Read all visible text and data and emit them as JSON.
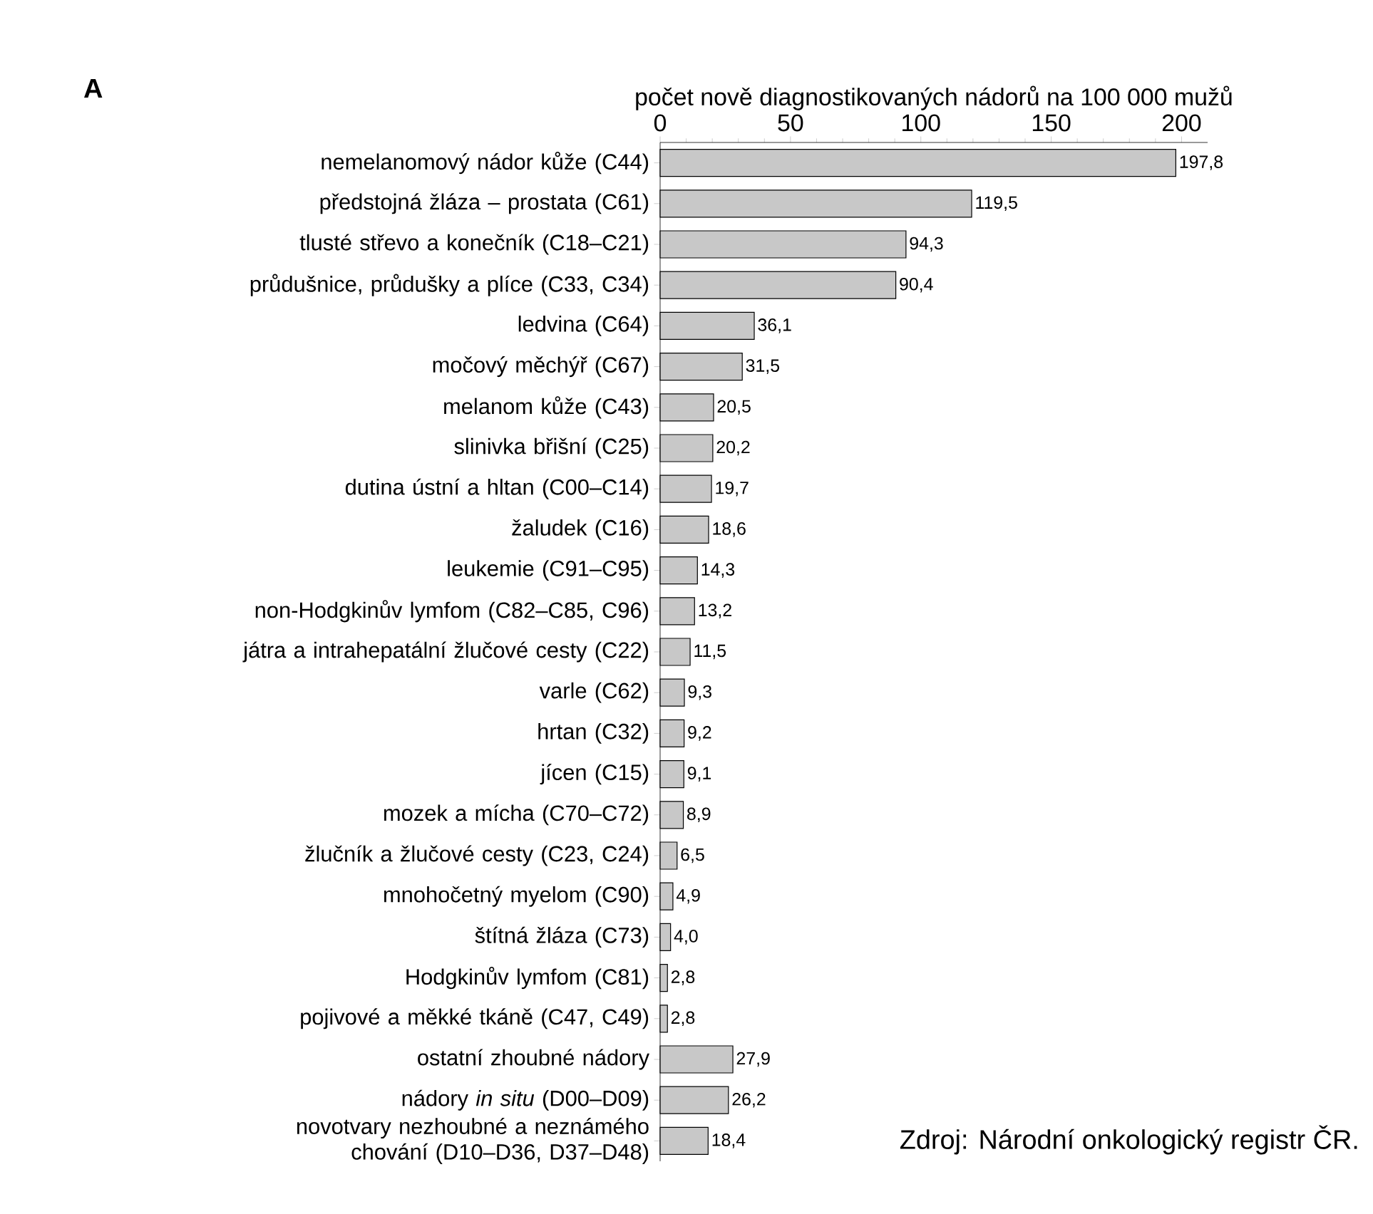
{
  "chart_data": {
    "type": "bar",
    "orientation": "horizontal",
    "title": "A",
    "xlabel": "počet nově diagnostikovaných nádorů na 100 000 mužů",
    "categories": [
      "nemelanomový nádor kůže (C44)",
      "předstojná žláza – prostata (C61)",
      "tlusté střevo a konečník (C18–C21)",
      "průdušnice, průdušky a plíce (C33, C34)",
      "ledvina (C64)",
      "močový měchýř (C67)",
      "melanom kůže (C43)",
      "slinivka břišní (C25)",
      "dutina ústní a hltan (C00–C14)",
      "žaludek (C16)",
      "leukemie (C91–C95)",
      "non-Hodgkinův lymfom (C82–C85, C96)",
      "játra a intrahepatální žlučové cesty (C22)",
      "varle (C62)",
      "hrtan (C32)",
      "jícen (C15)",
      "mozek a mícha (C70–C72)",
      "žlučník a žlučové cesty (C23, C24)",
      "mnohočetný myelom (C90)",
      "štítná žláza (C73)",
      "Hodgkinův lymfom (C81)",
      "pojivové a měkké tkáně (C47, C49)",
      "ostatní zhoubné nádory",
      "nádory *in situ* (D00–D09)",
      "novotvary nezhoubné a neznámého chování (D10–D36, D37–D48)"
    ],
    "values": [
      197.8,
      119.5,
      94.3,
      90.4,
      36.1,
      31.5,
      20.5,
      20.2,
      19.7,
      18.6,
      14.3,
      13.2,
      11.5,
      9.3,
      9.2,
      9.1,
      8.9,
      6.5,
      4.9,
      4.0,
      2.8,
      2.8,
      27.9,
      26.2,
      18.4
    ],
    "value_labels": [
      "197,8",
      "119,5",
      "94,3",
      "90,4",
      "36,1",
      "31,5",
      "20,5",
      "20,2",
      "19,7",
      "18,6",
      "14,3",
      "13,2",
      "11,5",
      "9,3",
      "9,2",
      "9,1",
      "8,9",
      "6,5",
      "4,9",
      "4,0",
      "2,8",
      "2,8",
      "27,9",
      "26,2",
      "18,4"
    ],
    "color": "#c8c8c8",
    "xlim": [
      0,
      210
    ],
    "xticks": [
      0,
      50,
      100,
      150,
      200
    ],
    "annotations": [
      "Zdroj: Národní onkologický registr ČR."
    ]
  }
}
